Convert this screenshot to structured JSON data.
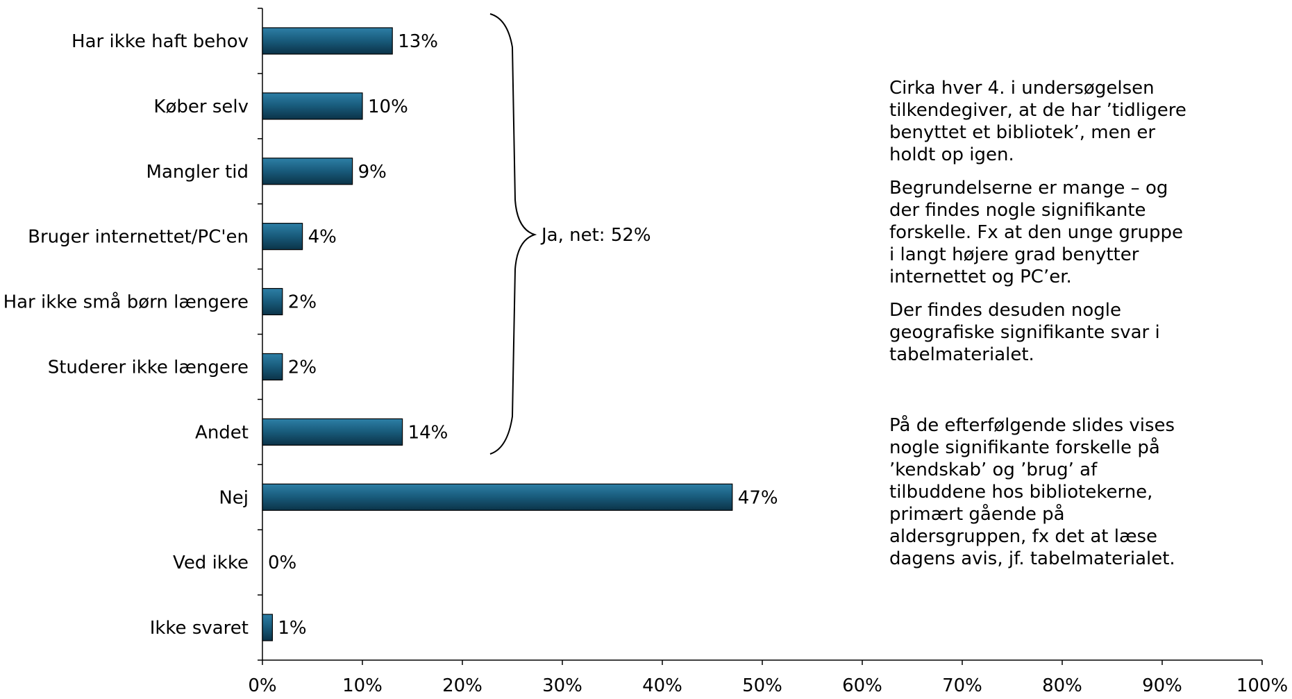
{
  "chart_data": {
    "type": "bar",
    "orientation": "horizontal",
    "categories": [
      "Har ikke haft behov",
      "Køber selv",
      "Mangler tid",
      "Bruger internettet/PC'en",
      "Har ikke små børn længere",
      "Studerer ikke længere",
      "Andet",
      "Nej",
      "Ved ikke",
      "Ikke svaret"
    ],
    "values": [
      13,
      10,
      9,
      4,
      2,
      2,
      14,
      47,
      0,
      1
    ],
    "value_labels": [
      "13%",
      "10%",
      "9%",
      "4%",
      "2%",
      "2%",
      "14%",
      "47%",
      "0%",
      "1%"
    ],
    "xlim": [
      0,
      100
    ],
    "x_ticks": [
      "0%",
      "10%",
      "20%",
      "30%",
      "40%",
      "50%",
      "60%",
      "70%",
      "80%",
      "90%",
      "100%"
    ],
    "grid": false,
    "legend": "none",
    "bar_color": "#1a5c7c",
    "annotation": {
      "text": "Ja, net: 52%",
      "spans_categories": [
        "Har ikke haft behov",
        "Andet"
      ]
    }
  },
  "notes": [
    "Cirka hver 4. i undersøgelsen\ntilkendegiver, at de har ’tidligere\nbenyttet et bibliotek’, men er\nholdt op igen.",
    "Begrundelserne er mange – og\nder findes nogle signifikante\nforskelle. Fx at den unge gruppe\ni langt højere grad benytter\ninternettet og PC’er.",
    "Der findes desuden nogle\ngeografiske signifikante svar i\ntabelmaterialet.",
    "På de efterfølgende slides vises\nnogle signifikante forskelle på\n’kendskab’ og ’brug’ af\ntilbuddene hos bibliotekerne,\nprimært gående på\naldersgruppen, fx det at læse\ndagens avis, jf. tabelmaterialet."
  ]
}
